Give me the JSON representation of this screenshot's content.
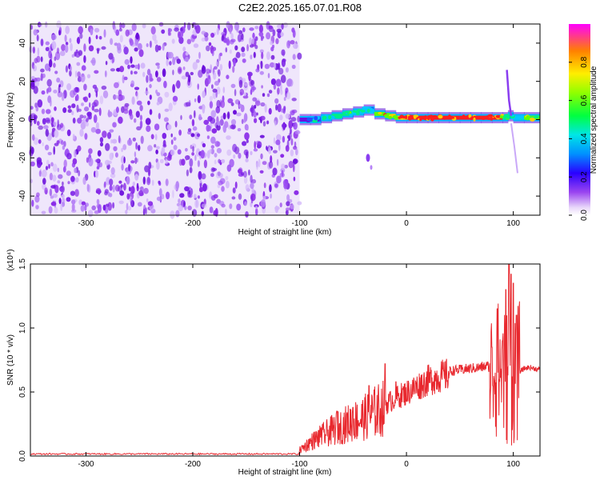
{
  "title": "C2E2.2025.165.07.01.R08",
  "colors": {
    "snr_line": "#e8282e",
    "axis": "#000000"
  },
  "chart_data": [
    {
      "type": "heatmap",
      "name": "spectrogram",
      "xlabel": "Height of straight line (km)",
      "ylabel": "Frequency (Hz)",
      "xlim": [
        -352,
        125
      ],
      "ylim": [
        -50,
        50
      ],
      "xticks": [
        -300,
        -200,
        -100,
        0,
        100
      ],
      "yticks": [
        -40,
        -20,
        0,
        20,
        40
      ],
      "x_tick_labels": [
        "-300",
        "-200",
        "-100",
        "0",
        "100"
      ],
      "y_tick_labels": [
        "-40",
        "-20",
        "0",
        "20",
        "40"
      ],
      "noise_region_x": [
        -352,
        -100
      ],
      "signal_band": {
        "x": [
          -100,
          -90,
          -80,
          -70,
          -60,
          -50,
          -40,
          -30,
          -20,
          -10,
          0,
          10,
          20,
          30,
          40,
          50,
          60,
          70,
          80,
          90,
          95,
          100,
          110,
          125
        ],
        "center_hz": [
          0,
          0,
          1,
          2,
          3,
          4,
          5,
          3,
          2,
          1,
          1,
          1,
          1,
          1,
          1,
          1,
          1,
          1,
          1,
          1,
          2,
          1,
          1,
          1
        ],
        "amplitude": [
          0.35,
          0.45,
          0.55,
          0.6,
          0.6,
          0.55,
          0.5,
          0.75,
          0.85,
          0.85,
          0.9,
          0.9,
          0.95,
          0.95,
          0.95,
          0.95,
          0.95,
          0.95,
          0.9,
          0.6,
          0.5,
          0.55,
          0.7,
          0.9
        ]
      },
      "colorbar": {
        "label": "Normalized spectral amplitude",
        "range": [
          0,
          1
        ],
        "ticks": [
          "0.0",
          "0.2",
          "0.4",
          "0.6",
          "0.8"
        ]
      }
    },
    {
      "type": "line",
      "name": "snr",
      "xlabel": "Height of straight line (km)",
      "ylabel": "SNR (10 * v/v)",
      "scale_label": "(x10⁴)",
      "xlim": [
        -352,
        125
      ],
      "ylim": [
        0,
        1.5
      ],
      "xticks": [
        -300,
        -200,
        -100,
        0,
        100
      ],
      "yticks": [
        0.0,
        0.5,
        1.0,
        1.5
      ],
      "x_tick_labels": [
        "-300",
        "-200",
        "-100",
        "0",
        "100"
      ],
      "y_tick_labels": [
        "0.0",
        "0.5",
        "1.0",
        "1.5"
      ],
      "baseline": {
        "x": [
          -352,
          -100
        ],
        "y": [
          0.01,
          0.01
        ]
      },
      "envelope": {
        "x": [
          -100,
          -90,
          -80,
          -70,
          -60,
          -50,
          -40,
          -30,
          -20,
          -10,
          0,
          10,
          20,
          30,
          40,
          50,
          60,
          70,
          75,
          80,
          85,
          90,
          95,
          100,
          105,
          110,
          115,
          125
        ],
        "y": [
          0.05,
          0.12,
          0.17,
          0.22,
          0.26,
          0.3,
          0.33,
          0.38,
          0.42,
          0.48,
          0.52,
          0.57,
          0.62,
          0.65,
          0.67,
          0.68,
          0.69,
          0.7,
          0.71,
          0.7,
          0.68,
          0.65,
          0.62,
          0.62,
          0.66,
          0.69,
          0.7,
          0.68
        ]
      },
      "spikes": {
        "x": [
          -80,
          -65,
          -50,
          -35,
          -20,
          -10,
          80,
          85,
          90,
          93,
          96,
          98,
          100,
          103
        ],
        "y": [
          0.22,
          0.35,
          0.38,
          0.55,
          0.72,
          0.58,
          0.85,
          1.15,
          0.9,
          1.3,
          1.5,
          1.42,
          1.35,
          1.1
        ]
      }
    }
  ]
}
